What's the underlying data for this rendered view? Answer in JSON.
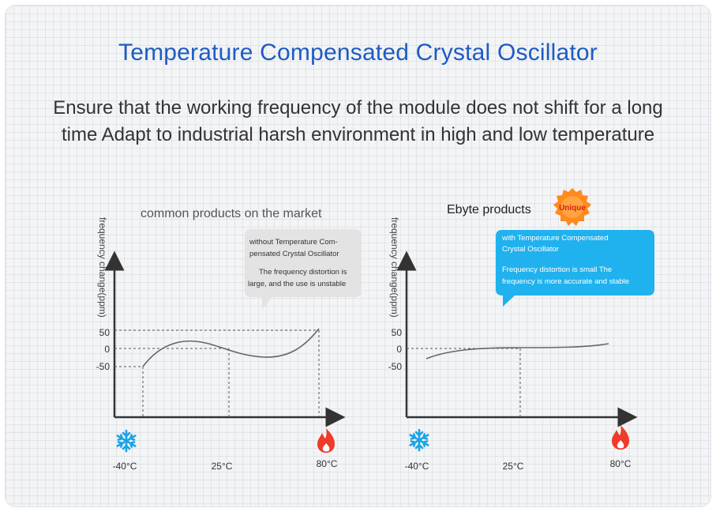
{
  "title": "Temperature Compensated Crystal Oscillator",
  "subtitle_lines": [
    "Ensure that the working frequency of the module does not shift for a long",
    "time Adapt to industrial harsh environment in high and low temperature"
  ],
  "colors": {
    "title": "#1c5bc4",
    "accent_callout": "#1fb2ee",
    "grey_callout": "#e3e3e3",
    "badge": "#ff8a1e",
    "cold_icon": "#1aa3e8",
    "hot_icon": "#f03a2a"
  },
  "left_chart": {
    "heading": "common products on the market",
    "ylabel": "frequency change(ppm)",
    "ticks_y": [
      "50",
      "0",
      "-50"
    ],
    "ticks_x": [
      "-40°C",
      "25°C",
      "80°C"
    ],
    "callout_line1": "without Temperature Com-",
    "callout_line2": "pensated Crystal Oscillator",
    "callout_line3": "The frequency distortion is",
    "callout_line4": "large, and the use is unstable"
  },
  "right_chart": {
    "heading": "Ebyte products",
    "badge": "Unique",
    "ylabel": "frequency change(ppm)",
    "ticks_y": [
      "50",
      "0",
      "-50"
    ],
    "ticks_x": [
      "-40°C",
      "25°C",
      "80°C"
    ],
    "callout_line1": "with Temperature Compensated",
    "callout_line2": "Crystal Oscillator",
    "callout_line3": "Frequency distortion is small The",
    "callout_line4": "frequency is more accurate and stable"
  },
  "icons": {
    "cold": "snowflake-icon",
    "hot": "flame-icon"
  }
}
